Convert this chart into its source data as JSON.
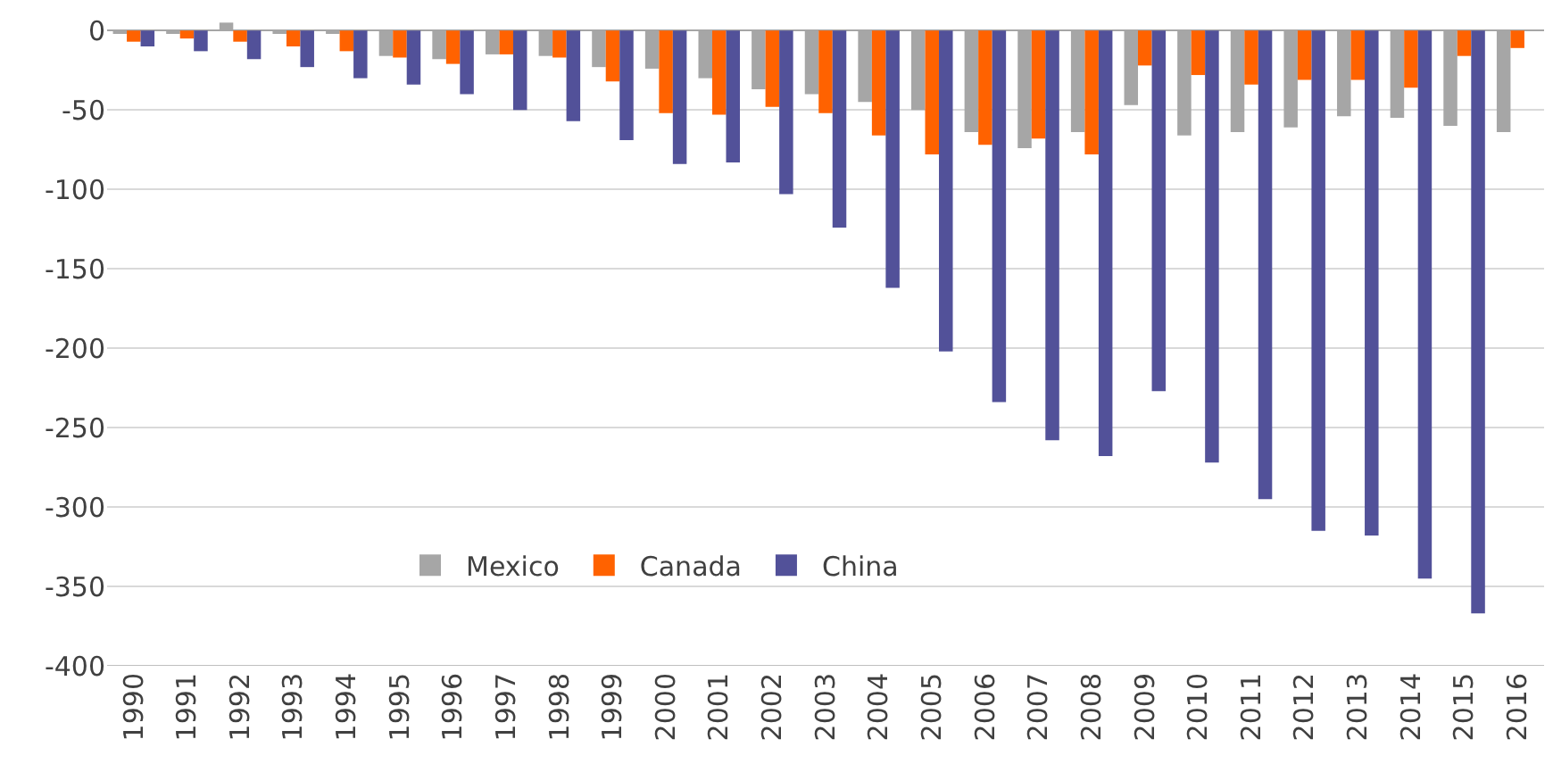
{
  "chart_data": {
    "type": "bar",
    "categories": [
      "1990",
      "1991",
      "1992",
      "1993",
      "1994",
      "1995",
      "1996",
      "1997",
      "1998",
      "1999",
      "2000",
      "2001",
      "2002",
      "2003",
      "2004",
      "2005",
      "2006",
      "2007",
      "2008",
      "2009",
      "2010",
      "2011",
      "2012",
      "2013",
      "2014",
      "2015",
      "2016"
    ],
    "series": [
      {
        "name": "Mexico",
        "color": "#a6a6a6",
        "values": [
          -2,
          -1,
          5,
          -1,
          -1,
          -16,
          -18,
          -15,
          -16,
          -23,
          -24,
          -30,
          -37,
          -40,
          -45,
          -50,
          -64,
          -74,
          -64,
          -47,
          -66,
          -64,
          -61,
          -54,
          -55,
          -60,
          -64
        ]
      },
      {
        "name": "Canada",
        "color": "#ff6200",
        "values": [
          -7,
          -5,
          -7,
          -10,
          -13,
          -17,
          -21,
          -15,
          -17,
          -32,
          -52,
          -53,
          -48,
          -52,
          -66,
          -78,
          -72,
          -68,
          -78,
          -22,
          -28,
          -34,
          -31,
          -31,
          -36,
          -16,
          -11
        ]
      },
      {
        "name": "China",
        "color": "#525199",
        "values": [
          -10,
          -13,
          -18,
          -23,
          -30,
          -34,
          -40,
          -50,
          -57,
          -69,
          -84,
          -83,
          -103,
          -124,
          -162,
          -202,
          -234,
          -258,
          -268,
          -227,
          -272,
          -295,
          -315,
          -318,
          -345,
          -367,
          null
        ]
      }
    ],
    "ylim": [
      -400,
      8
    ],
    "yticks": [
      -400,
      -350,
      -300,
      -250,
      -200,
      -150,
      -100,
      -50,
      0
    ],
    "grid": "y",
    "legend": "bottom left"
  }
}
